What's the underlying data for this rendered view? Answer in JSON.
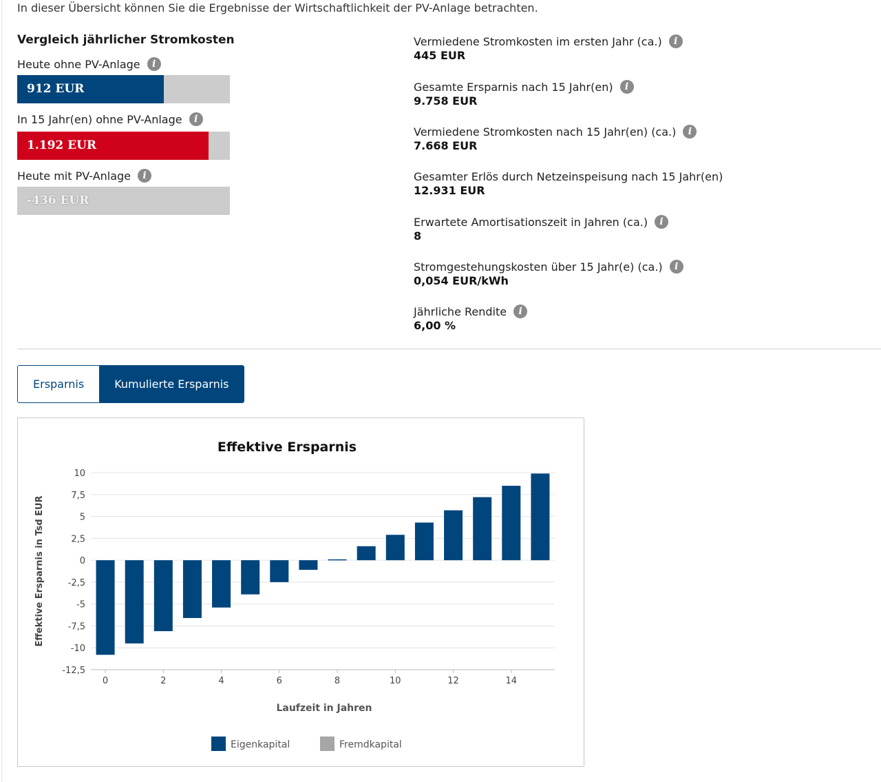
{
  "intro_text": "In dieser Übersicht können Sie die Ergebnisse der Wirtschaftlichkeit der PV-Anlage betrachten.",
  "comparison": {
    "title": "Vergleich jährlicher Stromkosten",
    "bars": [
      {
        "label": "Heute ohne PV-Anlage",
        "value": "912 EUR",
        "fill_fraction": 0.69,
        "color": "#00457c"
      },
      {
        "label": "In 15 Jahr(en) ohne PV-Anlage",
        "value": "1.192 EUR",
        "fill_fraction": 0.9,
        "color": "#d0021b"
      },
      {
        "label": "Heute mit PV-Anlage",
        "value": "-436 EUR",
        "fill_fraction": 0,
        "color": "#cccccc"
      }
    ]
  },
  "kpis": [
    {
      "label": "Vermiedene Stromkosten im ersten Jahr (ca.)",
      "value": "445 EUR",
      "info": true
    },
    {
      "label": "Gesamte Ersparnis nach 15 Jahr(en)",
      "value": "9.758 EUR",
      "info": true
    },
    {
      "label": "Vermiedene Stromkosten nach 15 Jahr(en) (ca.)",
      "value": "7.668 EUR",
      "info": true
    },
    {
      "label": "Gesamter Erlös durch Netzeinspeisung nach 15 Jahr(en)",
      "value": "12.931 EUR",
      "info": false
    },
    {
      "label": "Erwartete Amortisationszeit in Jahren (ca.)",
      "value": "8",
      "info": true
    },
    {
      "label": "Stromgestehungskosten über 15 Jahr(e) (ca.)",
      "value": "0,054 EUR/kWh",
      "info": true
    },
    {
      "label": "Jährliche Rendite",
      "value": "6,00 %",
      "info": true
    }
  ],
  "info_icon_glyph": "i",
  "tabs": [
    {
      "label": "Ersparnis",
      "active": false
    },
    {
      "label": "Kumulierte Ersparnis",
      "active": true
    }
  ],
  "colors": {
    "primary": "#00457c",
    "red": "#d0021b",
    "gray": "#cccccc",
    "legend_gray": "#a6a6a6"
  },
  "chart_data": {
    "type": "bar",
    "title": "Effektive Ersparnis",
    "xlabel": "Laufzeit in Jahren",
    "ylabel": "Effektive Ersparnis in Tsd EUR",
    "x": [
      0,
      1,
      2,
      3,
      4,
      5,
      6,
      7,
      8,
      9,
      10,
      11,
      12,
      13,
      14,
      15
    ],
    "x_tick_labels": [
      "0",
      "2",
      "4",
      "6",
      "8",
      "10",
      "12",
      "14"
    ],
    "x_tick_values": [
      0,
      2,
      4,
      6,
      8,
      10,
      12,
      14
    ],
    "y_tick_labels": [
      "10",
      "7,5",
      "5",
      "2,5",
      "0",
      "-2,5",
      "-5",
      "-7,5",
      "-10",
      "-12,5"
    ],
    "y_tick_values": [
      10,
      7.5,
      5,
      2.5,
      0,
      -2.5,
      -5,
      -7.5,
      -10,
      -12.5
    ],
    "ylim": [
      -12.5,
      10
    ],
    "series": [
      {
        "name": "Eigenkapital",
        "color": "#00457c",
        "values": [
          -10.8,
          -9.5,
          -8.1,
          -6.6,
          -5.4,
          -3.9,
          -2.5,
          -1.1,
          0.1,
          1.6,
          2.9,
          4.3,
          5.7,
          7.2,
          8.5,
          9.9
        ]
      },
      {
        "name": "Fremdkapital",
        "color": "#a6a6a6",
        "values": [
          0,
          0,
          0,
          0,
          0,
          0,
          0,
          0,
          0,
          0,
          0,
          0,
          0,
          0,
          0,
          0
        ]
      }
    ],
    "grid": true,
    "legend_position": "bottom"
  }
}
